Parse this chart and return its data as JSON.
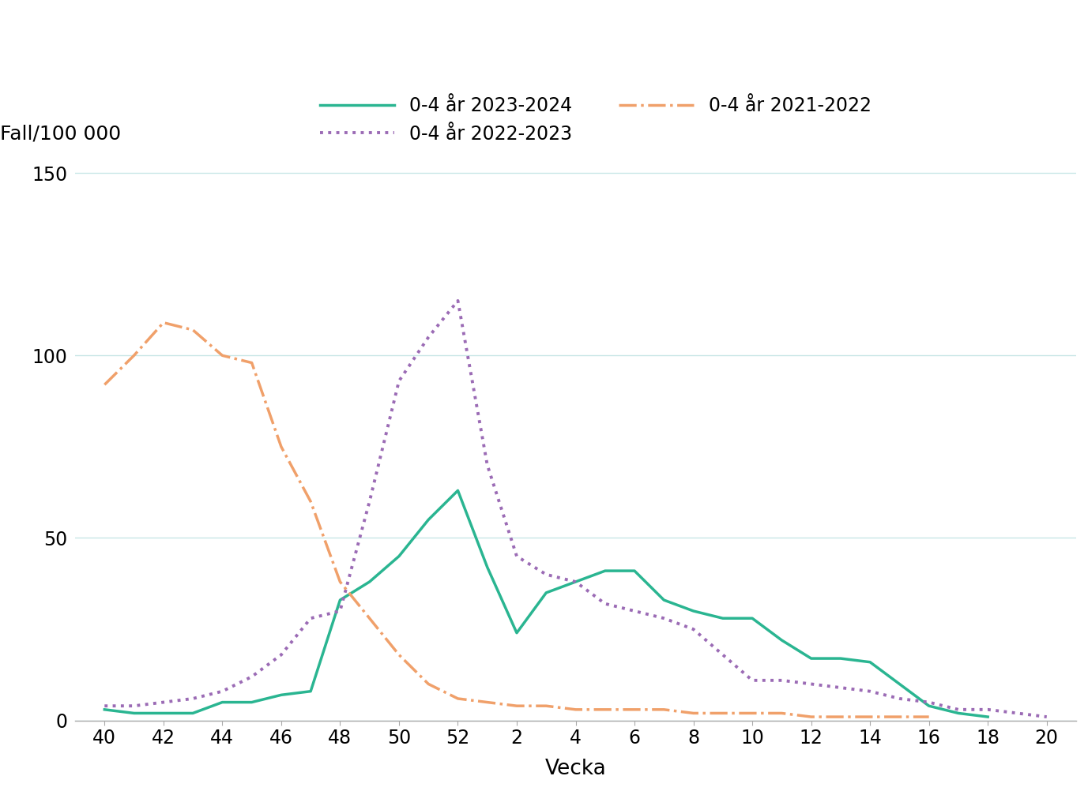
{
  "x_labels": [
    40,
    42,
    44,
    46,
    48,
    50,
    52,
    2,
    4,
    6,
    8,
    10,
    12,
    14,
    16,
    18,
    20
  ],
  "x_tick_positions": [
    40,
    42,
    44,
    46,
    48,
    50,
    52,
    54,
    56,
    58,
    60,
    62,
    64,
    66,
    68,
    70,
    72
  ],
  "series_2023_2024": {
    "label": "0-4 år 2023-2024",
    "color": "#2ab591",
    "linestyle": "solid",
    "linewidth": 2.5,
    "x": [
      40,
      41,
      42,
      43,
      44,
      45,
      46,
      47,
      48,
      49,
      50,
      51,
      52,
      53,
      54,
      55,
      56,
      57,
      58,
      59,
      60,
      61,
      62,
      63,
      64,
      65,
      66,
      67,
      68,
      69,
      70
    ],
    "y": [
      3,
      2,
      2,
      2,
      5,
      5,
      7,
      8,
      33,
      38,
      45,
      55,
      63,
      42,
      24,
      35,
      38,
      41,
      41,
      33,
      30,
      28,
      28,
      22,
      17,
      17,
      16,
      10,
      4,
      2,
      1
    ]
  },
  "series_2022_2023": {
    "label": "0-4 år 2022-2023",
    "color": "#9b6bb5",
    "linestyle": "dotted",
    "linewidth": 2.8,
    "x": [
      40,
      41,
      42,
      43,
      44,
      45,
      46,
      47,
      48,
      49,
      50,
      51,
      52,
      53,
      54,
      55,
      56,
      57,
      58,
      59,
      60,
      61,
      62,
      63,
      64,
      65,
      66,
      67,
      68,
      69,
      70,
      71,
      72
    ],
    "y": [
      4,
      4,
      5,
      6,
      8,
      12,
      18,
      28,
      30,
      60,
      93,
      105,
      115,
      70,
      45,
      40,
      38,
      32,
      30,
      28,
      25,
      18,
      11,
      11,
      10,
      9,
      8,
      6,
      5,
      3,
      3,
      2,
      1
    ]
  },
  "series_2021_2022": {
    "label": "0-4 år 2021-2022",
    "color": "#f0a06a",
    "linestyle": "dashdot",
    "linewidth": 2.5,
    "x": [
      40,
      41,
      42,
      43,
      44,
      45,
      46,
      47,
      48,
      49,
      50,
      51,
      52,
      53,
      54,
      55,
      56,
      57,
      58,
      59,
      60,
      61,
      62,
      63,
      64,
      65,
      66,
      67,
      68
    ],
    "y": [
      92,
      100,
      109,
      107,
      100,
      98,
      75,
      60,
      38,
      28,
      18,
      10,
      6,
      5,
      4,
      4,
      3,
      3,
      3,
      3,
      2,
      2,
      2,
      2,
      1,
      1,
      1,
      1,
      1
    ]
  },
  "ylabel": "Fall/100 000",
  "xlabel": "Vecka",
  "ylim": [
    0,
    155
  ],
  "yticks": [
    0,
    50,
    100,
    150
  ],
  "xlim": [
    39,
    73
  ],
  "background_color": "#ffffff",
  "grid_color": "#c8e6e6",
  "axis_fontsize": 18,
  "legend_fontsize": 17,
  "tick_fontsize": 17
}
